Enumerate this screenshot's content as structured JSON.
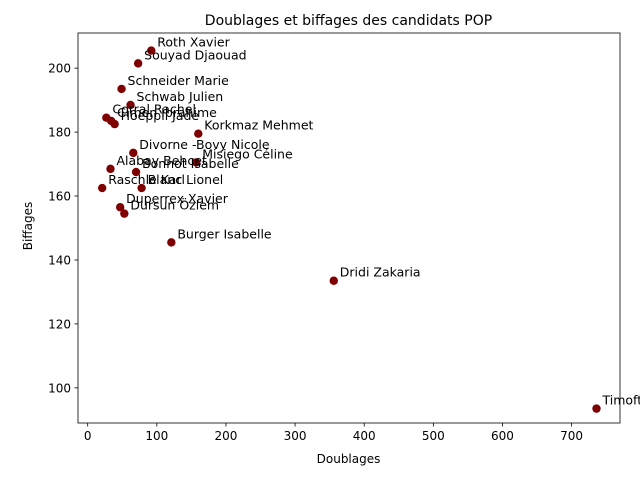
{
  "chart_data": {
    "type": "scatter",
    "title": "Doublages et biffages des candidats POP",
    "xlabel": "Doublages",
    "ylabel": "Biffages",
    "xlim": [
      -14,
      770
    ],
    "ylim": [
      89,
      211
    ],
    "x_ticks": [
      0,
      100,
      200,
      300,
      400,
      500,
      600,
      700
    ],
    "y_ticks": [
      100,
      120,
      140,
      160,
      180,
      200
    ],
    "marker_color": "#7f0000",
    "grid": false,
    "legend": "none",
    "points": [
      {
        "label": "Roth Xavier",
        "x": 92,
        "y": 205.5
      },
      {
        "label": "Souyad Djaouad",
        "x": 73,
        "y": 201.5
      },
      {
        "label": "Schneider Marie",
        "x": 49,
        "y": 193.5
      },
      {
        "label": "Schwab Julien",
        "x": 62,
        "y": 188.5
      },
      {
        "label": "Corral Rachel",
        "x": 27,
        "y": 184.5
      },
      {
        "label": "Cimen Ibrahime",
        "x": 34,
        "y": 183.5
      },
      {
        "label": "Hoeppli Jade",
        "x": 39,
        "y": 182.5
      },
      {
        "label": "Korkmaz Mehmet",
        "x": 160,
        "y": 179.5
      },
      {
        "label": "Divorne -Bovy Nicole",
        "x": 66,
        "y": 173.5
      },
      {
        "label": "Misiego Céline",
        "x": 157,
        "y": 170.5
      },
      {
        "label": "Alabay Behcet",
        "x": 33,
        "y": 168.5
      },
      {
        "label": "Bonnot Isabelle",
        "x": 70,
        "y": 167.5
      },
      {
        "label": "Raschle Karl",
        "x": 21,
        "y": 162.5
      },
      {
        "label": "Blanc Lionel",
        "x": 78,
        "y": 162.5
      },
      {
        "label": "Duperrex Xavier",
        "x": 47,
        "y": 156.5
      },
      {
        "label": "Dursun Özlem",
        "x": 53,
        "y": 154.5
      },
      {
        "label": "Burger Isabelle",
        "x": 121,
        "y": 145.5
      },
      {
        "label": "Dridi Zakaria",
        "x": 356,
        "y": 133.5
      },
      {
        "label": "Timofte Alexandre",
        "x": 736,
        "y": 93.5
      }
    ]
  }
}
